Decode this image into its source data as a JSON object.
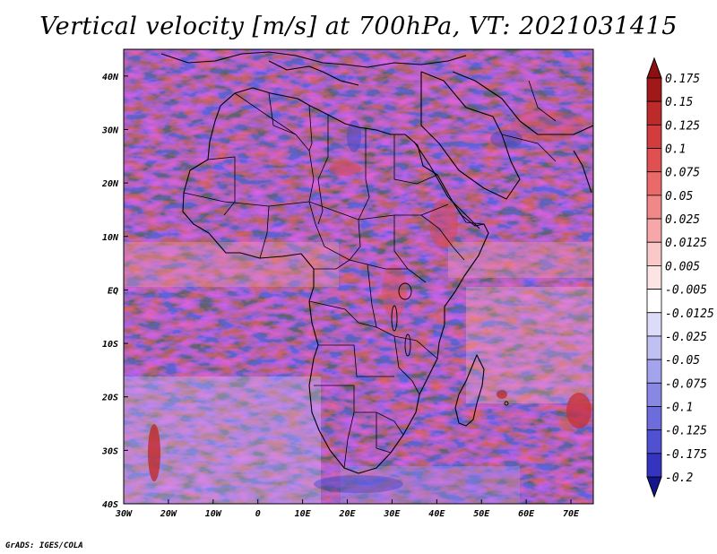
{
  "title": "Vertical velocity [m/s] at 700hPa, VT: 2021031415",
  "variable": "Vertical velocity",
  "units": "m/s",
  "level": "700hPa",
  "valid_time": "2021031415",
  "credit": "GrADS: IGES/COLA",
  "map": {
    "lon_range": [
      -30,
      75
    ],
    "lat_range": [
      -40,
      45
    ],
    "lon_ticks": [
      {
        "value": -30,
        "label": "30W"
      },
      {
        "value": -20,
        "label": "20W"
      },
      {
        "value": -10,
        "label": "10W"
      },
      {
        "value": 0,
        "label": "0"
      },
      {
        "value": 10,
        "label": "10E"
      },
      {
        "value": 20,
        "label": "20E"
      },
      {
        "value": 30,
        "label": "30E"
      },
      {
        "value": 40,
        "label": "40E"
      },
      {
        "value": 50,
        "label": "50E"
      },
      {
        "value": 60,
        "label": "60E"
      },
      {
        "value": 70,
        "label": "70E"
      }
    ],
    "lat_ticks": [
      {
        "value": 40,
        "label": "40N"
      },
      {
        "value": 30,
        "label": "30N"
      },
      {
        "value": 20,
        "label": "20N"
      },
      {
        "value": 10,
        "label": "10N"
      },
      {
        "value": 0,
        "label": "EQ"
      },
      {
        "value": -10,
        "label": "10S"
      },
      {
        "value": -20,
        "label": "20S"
      },
      {
        "value": -30,
        "label": "30S"
      },
      {
        "value": -40,
        "label": "40S"
      }
    ]
  },
  "colorbar": {
    "levels": [
      {
        "label": "0.175",
        "color": "#a01818"
      },
      {
        "label": "0.15",
        "color": "#be2a2a"
      },
      {
        "label": "0.125",
        "color": "#d23c3c"
      },
      {
        "label": "0.1",
        "color": "#e05050"
      },
      {
        "label": "0.075",
        "color": "#ea6a6a"
      },
      {
        "label": "0.05",
        "color": "#f08888"
      },
      {
        "label": "0.025",
        "color": "#f6a8a8"
      },
      {
        "label": "0.0125",
        "color": "#fac8c8"
      },
      {
        "label": "0.005",
        "color": "#fce4e4"
      },
      {
        "label": "-0.005",
        "color": "#ffffff"
      },
      {
        "label": "-0.0125",
        "color": "#dcdcf8"
      },
      {
        "label": "-0.025",
        "color": "#c0c0f2"
      },
      {
        "label": "-0.05",
        "color": "#a4a4ec"
      },
      {
        "label": "-0.075",
        "color": "#8888e4"
      },
      {
        "label": "-0.1",
        "color": "#6c6cdc"
      },
      {
        "label": "-0.125",
        "color": "#5050d2"
      },
      {
        "label": "-0.175",
        "color": "#3434c0"
      },
      {
        "label": "-0.2",
        "color": "#1c1ca8"
      }
    ],
    "top_color": "#8c1010",
    "bottom_color": "#14148c"
  }
}
